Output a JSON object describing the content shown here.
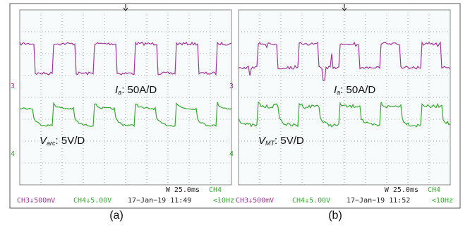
{
  "panels": [
    {
      "caption": "(a)",
      "labels": [
        {
          "name": "I",
          "sub": "a",
          "scale": ": 50A/D"
        },
        {
          "name": "V",
          "sub": "arc",
          "scale": ": 5V/D"
        }
      ],
      "markers": [
        "3",
        "4"
      ],
      "timebase": "W 25.0ms",
      "trigger": "CH4",
      "ch3": "CH3↓500mV",
      "ch4": "CH4↓5.00V",
      "datetime": "17−Jan−19 11:49",
      "frequency": "<10Hz"
    },
    {
      "caption": "(b)",
      "labels": [
        {
          "name": "I",
          "sub": "a",
          "scale": ": 50A/D"
        },
        {
          "name": "V",
          "sub": "MT",
          "scale": ": 5V/D"
        }
      ],
      "markers": [
        "3",
        "4"
      ],
      "timebase": "W 25.0ms",
      "trigger": "CH4",
      "ch3": "CH3↓500mV",
      "ch4": "CH4↓5.00V",
      "datetime": "17−Jan−19 11:52",
      "frequency": "<10Hz"
    }
  ]
}
